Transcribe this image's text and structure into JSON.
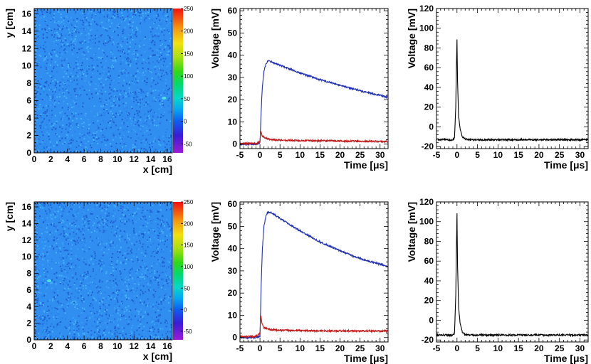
{
  "figure": {
    "colors": {
      "blue_trace": "#1f2fb0",
      "red_trace": "#c01818",
      "black_trace": "#000000"
    }
  },
  "chart_data": [
    {
      "id": "map-top",
      "type": "heatmap",
      "xlabel": "x [cm]",
      "ylabel": "y [cm]",
      "xlim": [
        0,
        16.6
      ],
      "ylim": [
        0,
        16.6
      ],
      "xticks": [
        0,
        2,
        4,
        6,
        8,
        10,
        12,
        14,
        16
      ],
      "yticks": [
        0,
        2,
        4,
        6,
        8,
        10,
        12,
        14,
        16
      ],
      "colorbar": {
        "range": [
          -70,
          250
        ],
        "ticks": [
          -50,
          0,
          50,
          100,
          150,
          200,
          250
        ]
      },
      "hotspot": {
        "x": 15.6,
        "y": 6.3
      }
    },
    {
      "id": "wave-top-mid",
      "type": "line",
      "xlabel": "Time [μs]",
      "ylabel": "Voltage [mV]",
      "xlim": [
        -5,
        32
      ],
      "ylim": [
        -2,
        61
      ],
      "xticks": [
        -5,
        0,
        5,
        10,
        15,
        20,
        25,
        30
      ],
      "yticks": [
        0,
        10,
        20,
        30,
        40,
        50,
        60
      ],
      "series": [
        {
          "color": "#1f2fb0",
          "x": [
            -5,
            -1,
            0,
            0.3,
            0.6,
            1.0,
            1.5,
            2,
            3,
            5,
            10,
            15,
            20,
            25,
            30,
            32
          ],
          "y": [
            0,
            0,
            0.5,
            15,
            26,
            33,
            36,
            37.5,
            37,
            35.5,
            32,
            29,
            26.5,
            24,
            22,
            21
          ]
        },
        {
          "color": "#c01818",
          "x": [
            -5,
            -1,
            0,
            0.2,
            0.5,
            1,
            2,
            3,
            5,
            10,
            20,
            30,
            32
          ],
          "y": [
            0.3,
            0.3,
            1,
            6,
            4,
            3,
            2.3,
            2,
            1.8,
            1.6,
            1.4,
            1.2,
            1.1
          ]
        }
      ]
    },
    {
      "id": "wave-top-right",
      "type": "line",
      "xlabel": "Time [μs]",
      "ylabel": "Voltage [mV]",
      "xlim": [
        -5,
        32
      ],
      "ylim": [
        -22,
        120
      ],
      "xticks": [
        -5,
        0,
        5,
        10,
        15,
        20,
        25,
        30
      ],
      "yticks": [
        -20,
        0,
        20,
        40,
        60,
        80,
        100,
        120
      ],
      "series": [
        {
          "color": "#000000",
          "x": [
            -5,
            -1,
            -0.6,
            -0.3,
            -0.15,
            0,
            0.15,
            0.4,
            0.8,
            1.3,
            2,
            3,
            32
          ],
          "y": [
            -13,
            -13,
            -11,
            20,
            60,
            88,
            45,
            10,
            -3,
            -10,
            -12.5,
            -13,
            -13
          ]
        }
      ]
    },
    {
      "id": "map-bottom",
      "type": "heatmap",
      "xlabel": "x [cm]",
      "ylabel": "y [cm]",
      "xlim": [
        0,
        16.6
      ],
      "ylim": [
        0,
        16.6
      ],
      "xticks": [
        0,
        2,
        4,
        6,
        8,
        10,
        12,
        14,
        16
      ],
      "yticks": [
        0,
        2,
        4,
        6,
        8,
        10,
        12,
        14,
        16
      ],
      "colorbar": {
        "range": [
          -70,
          250
        ],
        "ticks": [
          -50,
          0,
          50,
          100,
          150,
          200,
          250
        ]
      },
      "hotspot": {
        "x": 1.8,
        "y": 7.1
      }
    },
    {
      "id": "wave-bottom-mid",
      "type": "line",
      "xlabel": "Time [μs]",
      "ylabel": "Voltage [mV]",
      "xlim": [
        -5,
        32
      ],
      "ylim": [
        -2,
        61
      ],
      "xticks": [
        -5,
        0,
        5,
        10,
        15,
        20,
        25,
        30
      ],
      "yticks": [
        0,
        10,
        20,
        30,
        40,
        50,
        60
      ],
      "series": [
        {
          "color": "#1f2fb0",
          "x": [
            -5,
            -1,
            0,
            0.3,
            0.6,
            1.0,
            1.5,
            2,
            3,
            5,
            10,
            15,
            20,
            25,
            30,
            32
          ],
          "y": [
            0,
            0,
            0.5,
            24,
            40,
            50,
            55,
            56.5,
            56,
            53.5,
            48,
            43,
            39,
            35.5,
            33,
            32
          ]
        },
        {
          "color": "#c01818",
          "x": [
            -5,
            -1,
            0,
            0.2,
            0.5,
            1,
            2,
            3,
            5,
            10,
            20,
            30,
            32
          ],
          "y": [
            0.5,
            0.5,
            2,
            10,
            6.5,
            4.5,
            3.8,
            3.5,
            3.3,
            3.1,
            3,
            2.9,
            2.9
          ]
        }
      ]
    },
    {
      "id": "wave-bottom-right",
      "type": "line",
      "xlabel": "Time [μs]",
      "ylabel": "Voltage [mV]",
      "xlim": [
        -5,
        32
      ],
      "ylim": [
        -22,
        120
      ],
      "xticks": [
        -5,
        0,
        5,
        10,
        15,
        20,
        25,
        30
      ],
      "yticks": [
        -20,
        0,
        20,
        40,
        60,
        80,
        100,
        120
      ],
      "series": [
        {
          "color": "#000000",
          "x": [
            -5,
            -1,
            -0.6,
            -0.3,
            -0.15,
            0,
            0.15,
            0.4,
            0.8,
            1.3,
            2,
            3,
            32
          ],
          "y": [
            -15,
            -15,
            -13,
            25,
            70,
            108,
            55,
            12,
            -4,
            -12,
            -14.5,
            -15,
            -15
          ]
        }
      ]
    }
  ]
}
